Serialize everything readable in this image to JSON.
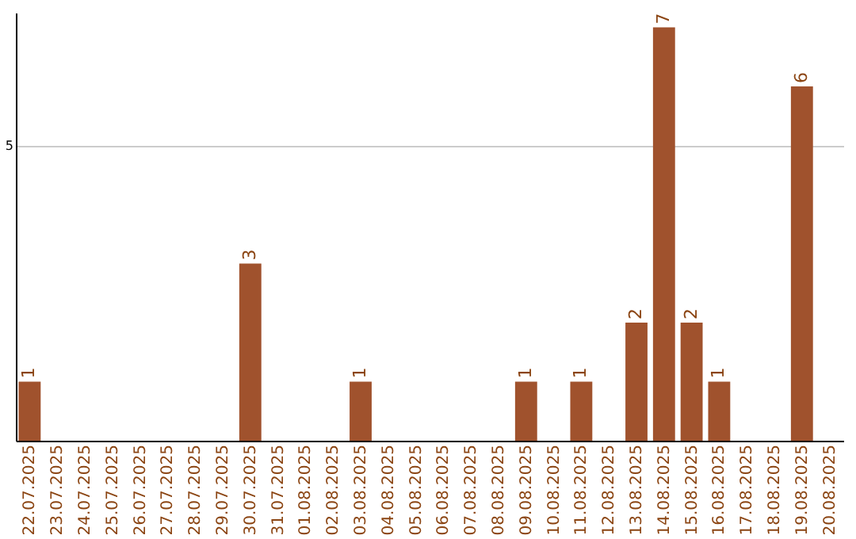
{
  "chart_data": {
    "type": "bar",
    "categories": [
      "22.07.2025",
      "23.07.2025",
      "24.07.2025",
      "25.07.2025",
      "26.07.2025",
      "27.07.2025",
      "28.07.2025",
      "29.07.2025",
      "30.07.2025",
      "31.07.2025",
      "01.08.2025",
      "02.08.2025",
      "03.08.2025",
      "04.08.2025",
      "05.08.2025",
      "06.08.2025",
      "07.08.2025",
      "08.08.2025",
      "09.08.2025",
      "10.08.2025",
      "11.08.2025",
      "12.08.2025",
      "13.08.2025",
      "14.08.2025",
      "15.08.2025",
      "16.08.2025",
      "17.08.2025",
      "18.08.2025",
      "19.08.2025",
      "20.08.2025"
    ],
    "values": [
      1,
      0,
      0,
      0,
      0,
      0,
      0,
      0,
      3,
      0,
      0,
      0,
      1,
      0,
      0,
      0,
      0,
      0,
      1,
      0,
      1,
      0,
      2,
      7,
      2,
      1,
      0,
      0,
      6,
      0
    ],
    "value_labels": [
      "1",
      null,
      null,
      null,
      null,
      null,
      null,
      null,
      "3",
      null,
      null,
      null,
      "1",
      null,
      null,
      null,
      null,
      null,
      "1",
      null,
      "1",
      null,
      "2",
      "7",
      "2",
      "1",
      null,
      null,
      "6",
      null
    ],
    "color": "#a0522d",
    "ylim": [
      0,
      7.25
    ],
    "yticks": [
      5
    ],
    "grid": "y"
  }
}
